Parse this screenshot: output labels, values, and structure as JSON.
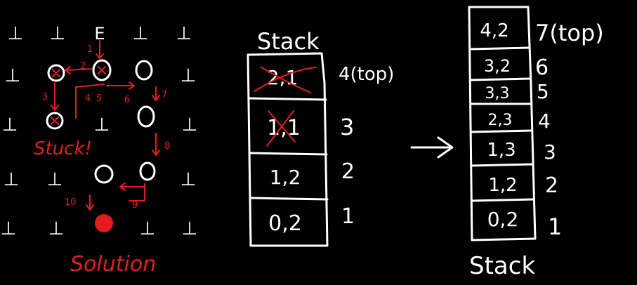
{
  "maze": {
    "cells": [
      [
        "wall",
        "wall",
        "E",
        "wall",
        "wall"
      ],
      [
        "wall",
        "visited",
        "visited",
        "open",
        "wall"
      ],
      [
        "wall",
        "visited",
        "wall",
        "open",
        "wall"
      ],
      [
        "wall",
        "wall",
        "open",
        "open",
        "wall"
      ],
      [
        "wall",
        "wall",
        "solution",
        "wall",
        "wall"
      ]
    ],
    "wall_glyph": "⊥",
    "entry_label": "E",
    "step_labels": [
      "1",
      "2",
      "3",
      "4",
      "5",
      "6",
      "7",
      "8",
      "9",
      "10"
    ],
    "stuck_label": "Stuck!",
    "solution_label": "Solution"
  },
  "stack_left": {
    "title": "Stack",
    "entries": [
      {
        "value": "2,1",
        "level": "4(top)",
        "crossed": true
      },
      {
        "value": "1,1",
        "level": "3",
        "crossed": true
      },
      {
        "value": "1,2",
        "level": "2",
        "crossed": false
      },
      {
        "value": "0,2",
        "level": "1",
        "crossed": false
      }
    ]
  },
  "arrow": "→",
  "stack_right": {
    "title": "Stack",
    "entries": [
      {
        "value": "4,2",
        "level": "7(top)"
      },
      {
        "value": "3,2",
        "level": "6"
      },
      {
        "value": "3,3",
        "level": "5"
      },
      {
        "value": "2,3",
        "level": "4"
      },
      {
        "value": "1,3",
        "level": "3"
      },
      {
        "value": "1,2",
        "level": "2"
      },
      {
        "value": "0,2",
        "level": "1"
      }
    ]
  },
  "colors": {
    "background": "#000000",
    "ink": "#ffffff",
    "annotation": "#e02020",
    "solution_fill": "#e21b1b"
  }
}
